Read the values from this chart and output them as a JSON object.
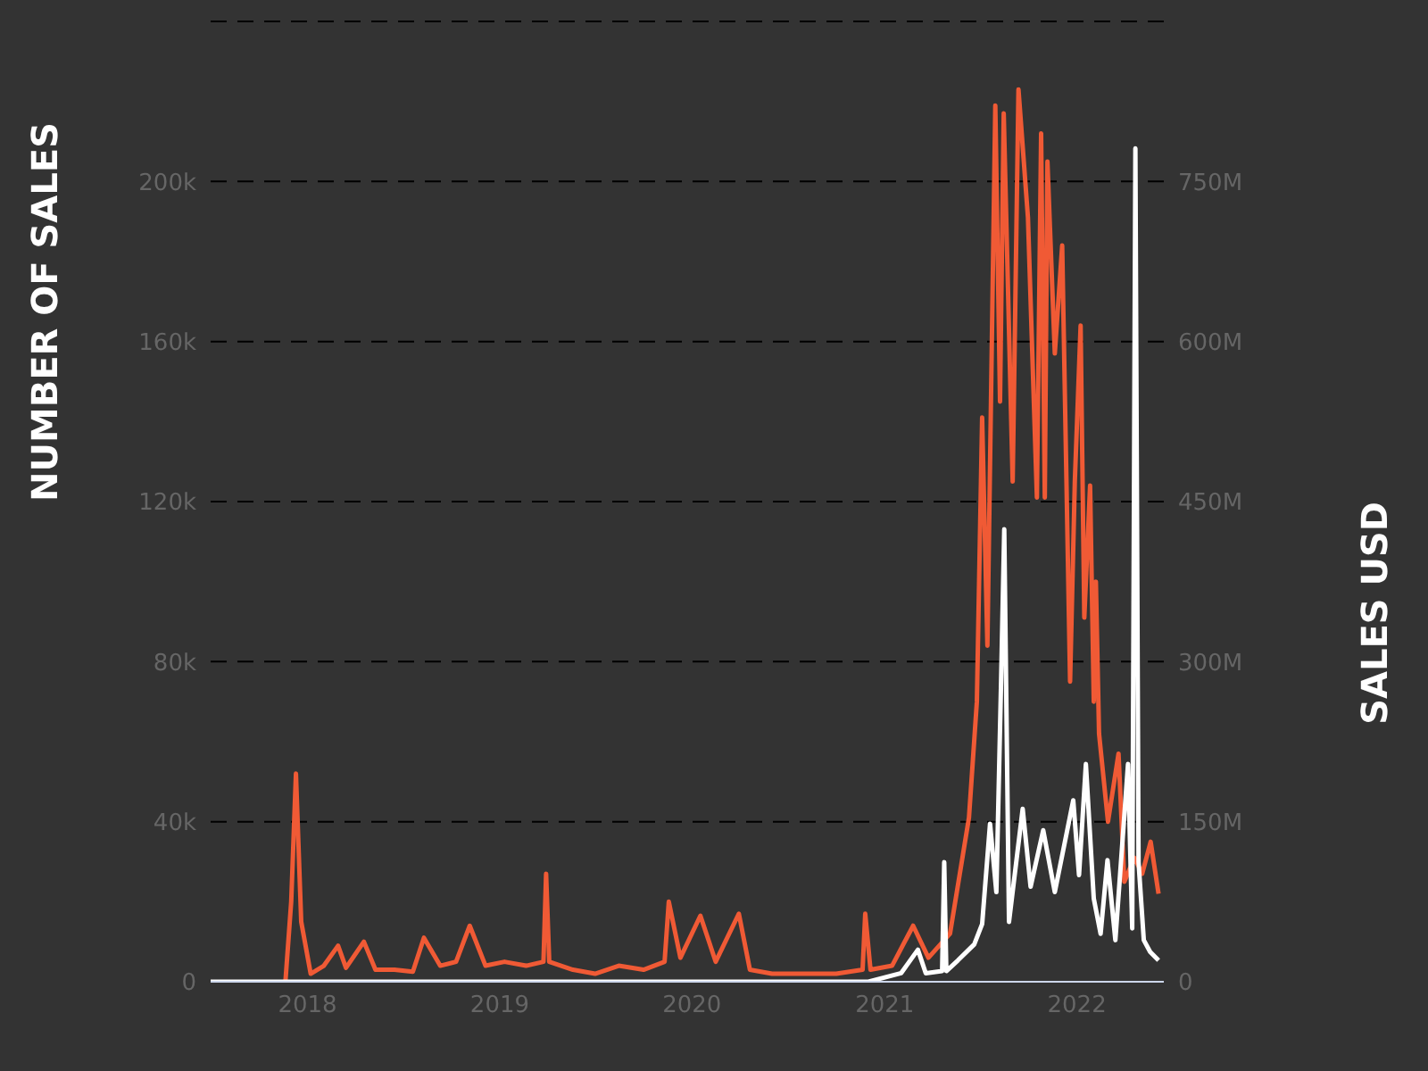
{
  "chart_data": {
    "type": "line",
    "ylabel": "NUMBER OF SALES",
    "y2label": "SALES USD",
    "xlim": [
      "2017-07-01",
      "2022-06-15"
    ],
    "xticks": [
      "2018",
      "2019",
      "2020",
      "2021",
      "2022"
    ],
    "ylim": [
      0,
      240000
    ],
    "yticks": [
      0,
      {
        "value": 40000,
        "label": "40k"
      },
      {
        "value": 80000,
        "label": "80k"
      },
      {
        "value": 120000,
        "label": "120k"
      },
      {
        "value": 160000,
        "label": "160k"
      },
      {
        "value": 200000,
        "label": "200k"
      },
      {
        "value": 240000,
        "label": null
      }
    ],
    "y2lim": [
      0,
      900000000
    ],
    "y2ticks": [
      0,
      {
        "value": 150000000,
        "label": "150M"
      },
      {
        "value": 300000000,
        "label": "300M"
      },
      {
        "value": 450000000,
        "label": "450M"
      },
      {
        "value": 600000000,
        "label": "600M"
      },
      {
        "value": 750000000,
        "label": "750M"
      }
    ],
    "grid": "y",
    "legend": false,
    "marker": "none",
    "line_style": "solid",
    "series": [
      {
        "color": "#f05a35",
        "x": [
          "2017-11-20",
          "2017-12-01",
          "2017-12-10",
          "2017-12-20",
          "2018-01-07",
          "2018-02-01",
          "2018-02-28",
          "2018-03-15",
          "2018-04-18",
          "2018-05-10",
          "2018-06-15",
          "2018-07-20",
          "2018-08-10",
          "2018-09-10",
          "2018-10-10",
          "2018-11-05",
          "2018-12-05",
          "2019-01-10",
          "2019-02-20",
          "2019-03-25",
          "2019-03-30",
          "2019-04-05",
          "2019-05-20",
          "2019-07-01",
          "2019-08-15",
          "2019-10-01",
          "2019-11-10",
          "2019-11-18",
          "2019-12-10",
          "2020-01-17",
          "2020-02-15",
          "2020-03-30",
          "2020-04-20",
          "2020-06-01",
          "2020-08-01",
          "2020-10-01",
          "2020-11-20",
          "2020-11-25",
          "2020-12-05",
          "2021-01-15",
          "2021-02-24",
          "2021-03-25",
          "2021-05-05",
          "2021-06-10",
          "2021-06-25",
          "2021-07-05",
          "2021-07-15",
          "2021-07-30",
          "2021-08-08",
          "2021-08-15",
          "2021-09-01",
          "2021-09-12",
          "2021-09-30",
          "2021-10-17",
          "2021-10-25",
          "2021-11-01",
          "2021-11-06",
          "2021-11-20",
          "2021-12-04",
          "2021-12-19",
          "2021-12-28",
          "2022-01-08",
          "2022-01-15",
          "2022-01-26",
          "2022-02-02",
          "2022-02-06",
          "2022-02-12",
          "2022-03-01",
          "2022-03-21",
          "2022-04-01",
          "2022-04-20",
          "2022-05-05",
          "2022-05-21",
          "2022-06-05"
        ],
        "values": [
          0,
          20000,
          52000,
          15000,
          2000,
          4000,
          9000,
          3500,
          10000,
          3000,
          3000,
          2500,
          11000,
          4000,
          5000,
          14000,
          4000,
          5000,
          4000,
          5000,
          27000,
          5000,
          3000,
          2000,
          4000,
          3000,
          5000,
          20000,
          6000,
          16500,
          5000,
          17000,
          3000,
          2000,
          2000,
          2000,
          3000,
          17000,
          3000,
          4000,
          14000,
          6000,
          12000,
          41000,
          70000,
          141000,
          84000,
          219000,
          145000,
          217000,
          125000,
          223000,
          191000,
          121000,
          212000,
          121000,
          205000,
          157000,
          184000,
          75000,
          125000,
          164000,
          91000,
          124000,
          70000,
          100000,
          62000,
          40000,
          57000,
          25000,
          31000,
          27000,
          35000,
          22000
        ]
      },
      {
        "color": "#ffffff",
        "axis": "y2",
        "x": [
          "2017-07-01",
          "2020-12-01",
          "2021-02-01",
          "2021-03-05",
          "2021-03-20",
          "2021-04-20",
          "2021-04-24",
          "2021-04-28",
          "2021-05-20",
          "2021-06-20",
          "2021-07-05",
          "2021-07-20",
          "2021-08-01",
          "2021-08-10",
          "2021-08-16",
          "2021-08-25",
          "2021-09-20",
          "2021-10-05",
          "2021-10-29",
          "2021-11-20",
          "2021-12-25",
          "2022-01-05",
          "2022-01-18",
          "2022-02-02",
          "2022-02-15",
          "2022-02-28",
          "2022-03-15",
          "2022-04-08",
          "2022-04-16",
          "2022-04-22",
          "2022-04-28",
          "2022-05-08",
          "2022-05-20",
          "2022-06-05"
        ],
        "values": [
          0,
          0,
          8000000,
          30000000,
          8000000,
          10000000,
          112000000,
          10000000,
          20000000,
          35000000,
          54000000,
          148000000,
          84000000,
          282000000,
          424000000,
          56000000,
          162000000,
          89000000,
          142000000,
          84000000,
          170000000,
          100000000,
          204000000,
          78000000,
          45000000,
          114000000,
          39000000,
          204000000,
          50000000,
          781000000,
          112000000,
          39000000,
          28000000,
          20000000
        ]
      }
    ]
  }
}
